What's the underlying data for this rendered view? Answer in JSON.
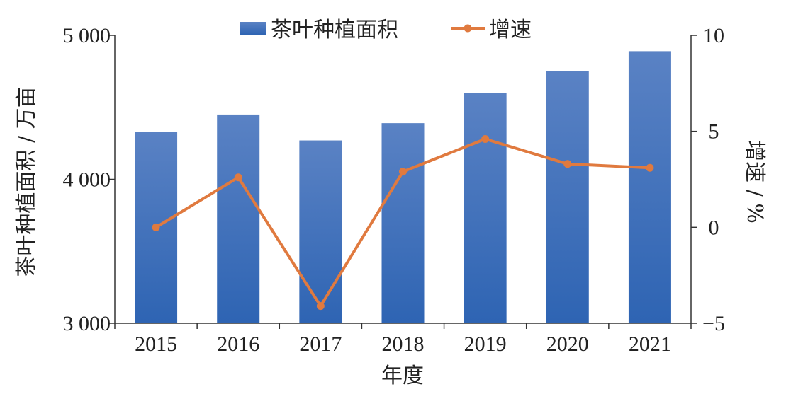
{
  "chart_data": {
    "type": "bar",
    "categories": [
      "2015",
      "2016",
      "2017",
      "2018",
      "2019",
      "2020",
      "2021"
    ],
    "series": [
      {
        "name": "茶叶种植面积",
        "type": "bar",
        "axis": "left",
        "color": "#3d6fba",
        "values": [
          4330,
          4450,
          4270,
          4390,
          4600,
          4750,
          4890
        ]
      },
      {
        "name": "增速",
        "type": "line",
        "axis": "right",
        "color": "#e07a3f",
        "values": [
          0.0,
          2.6,
          -4.1,
          2.9,
          4.6,
          3.3,
          3.1
        ]
      }
    ],
    "xlabel": "年度",
    "ylabel": "茶叶种植面积 / 万亩",
    "y2label": "增速 / %",
    "ylim": [
      3000,
      5000
    ],
    "y2lim": [
      -5,
      10
    ],
    "yticks": [
      "3 000",
      "4 000",
      "5 000"
    ],
    "yticks_values": [
      3000,
      4000,
      5000
    ],
    "y2ticks": [
      "−5",
      "0",
      "5",
      "10"
    ],
    "y2ticks_values": [
      -5,
      0,
      5,
      10
    ],
    "legend_position": "top",
    "grid": false
  }
}
